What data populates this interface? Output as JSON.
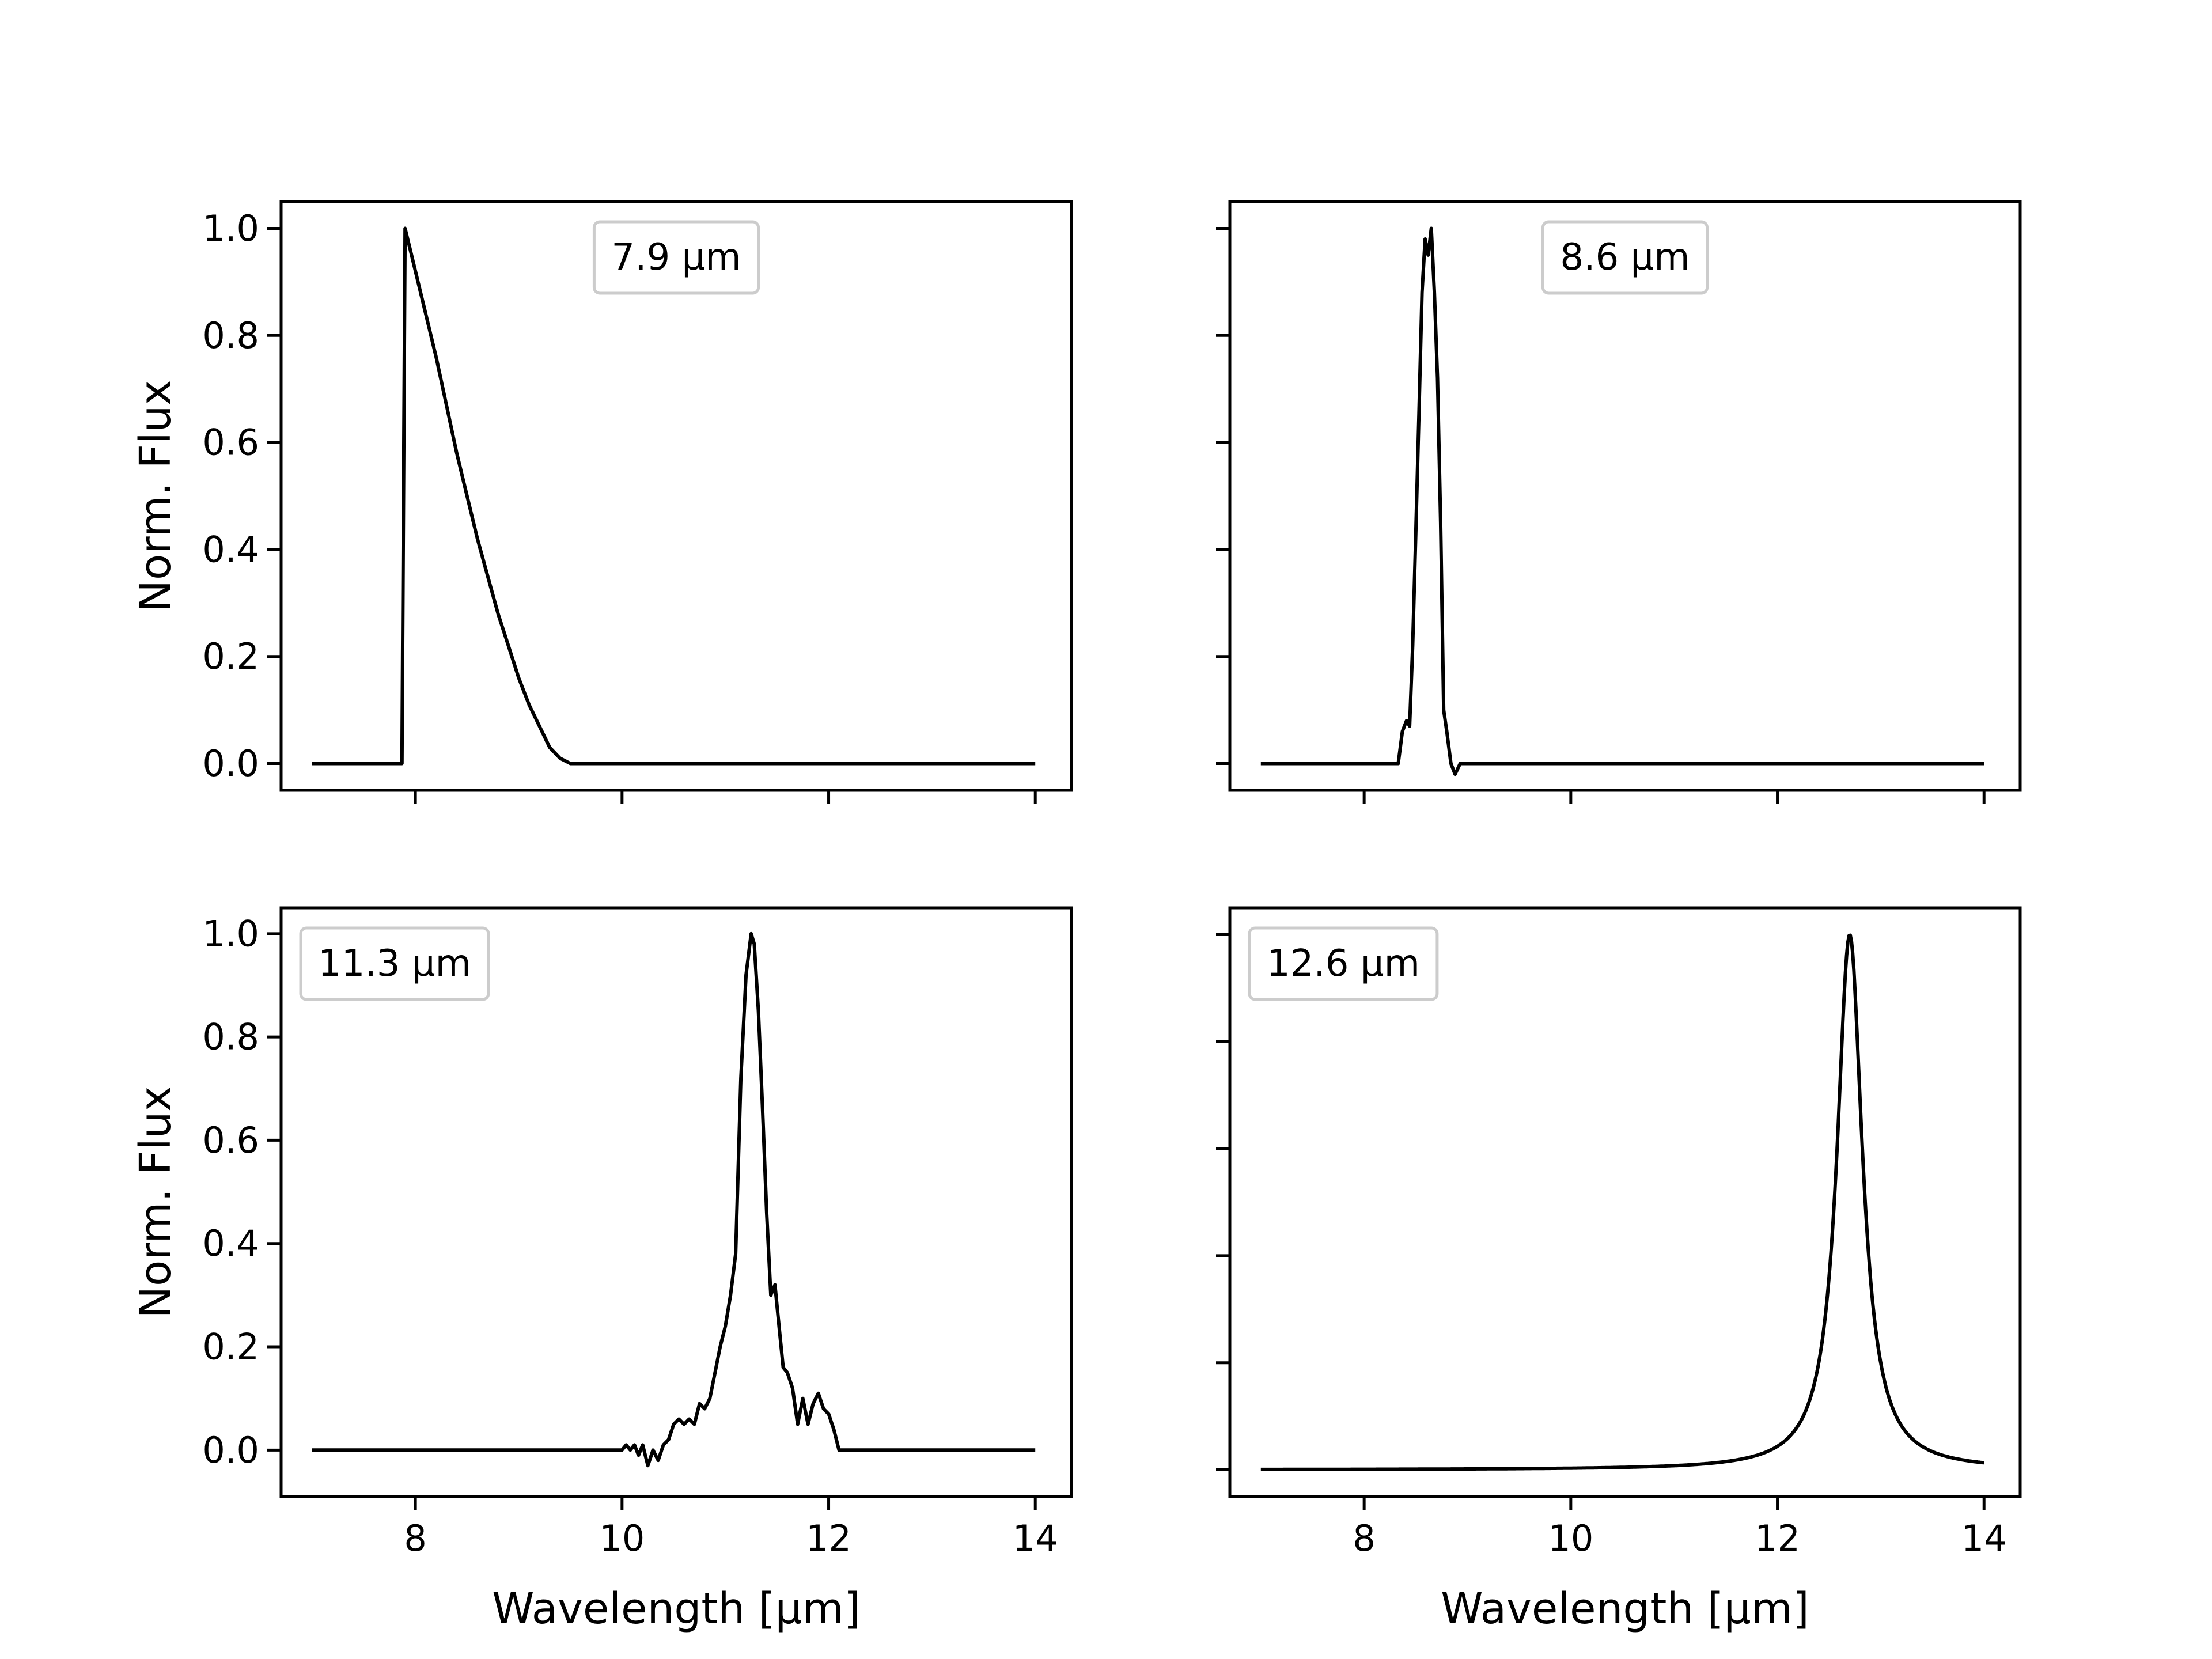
{
  "chart_data": [
    {
      "type": "line",
      "legend": "7.9 μm",
      "legend_placement": "top-center",
      "xlim": [
        6.7,
        14.35
      ],
      "ylim": [
        -0.05,
        1.05
      ],
      "xticks": [
        8,
        10,
        12,
        14
      ],
      "yticks": [
        0.0,
        0.2,
        0.4,
        0.6,
        0.8,
        1.0
      ],
      "ytick_labels": [
        "0.0",
        "0.2",
        "0.4",
        "0.6",
        "0.8",
        "1.0"
      ],
      "xtick_labels": [],
      "xlabel": "",
      "ylabel": "Norm. Flux",
      "grid": false,
      "series": [
        {
          "x": [
            7.0,
            7.87,
            7.9,
            7.95,
            8.0,
            8.1,
            8.2,
            8.3,
            8.4,
            8.5,
            8.6,
            8.7,
            8.8,
            8.9,
            9.0,
            9.1,
            9.2,
            9.3,
            9.4,
            9.5,
            10.0,
            11.0,
            12.0,
            13.0,
            14.0
          ],
          "y": [
            0.0,
            0.0,
            1.0,
            0.96,
            0.92,
            0.84,
            0.76,
            0.67,
            0.58,
            0.5,
            0.42,
            0.35,
            0.28,
            0.22,
            0.16,
            0.11,
            0.07,
            0.03,
            0.01,
            0.0,
            0.0,
            0.0,
            0.0,
            0.0,
            0.0
          ]
        }
      ]
    },
    {
      "type": "line",
      "legend": "8.6 μm",
      "legend_placement": "top-center",
      "xlim": [
        6.7,
        14.35
      ],
      "ylim": [
        -0.05,
        1.05
      ],
      "xticks": [
        8,
        10,
        12,
        14
      ],
      "yticks": [
        0.0,
        0.2,
        0.4,
        0.6,
        0.8,
        1.0
      ],
      "ytick_labels": [],
      "xtick_labels": [],
      "xlabel": "",
      "ylabel": "",
      "grid": false,
      "series": [
        {
          "x": [
            7.0,
            8.33,
            8.37,
            8.41,
            8.44,
            8.47,
            8.5,
            8.53,
            8.56,
            8.59,
            8.62,
            8.65,
            8.68,
            8.71,
            8.74,
            8.77,
            8.8,
            8.84,
            8.88,
            8.93,
            8.97,
            9.0,
            14.0
          ],
          "y": [
            0.0,
            0.0,
            0.06,
            0.08,
            0.07,
            0.22,
            0.43,
            0.65,
            0.88,
            0.98,
            0.95,
            1.0,
            0.88,
            0.72,
            0.45,
            0.1,
            0.06,
            0.0,
            -0.02,
            0.0,
            0.0,
            0.0,
            0.0
          ]
        }
      ]
    },
    {
      "type": "line",
      "legend": "11.3 μm",
      "legend_placement": "top-left",
      "xlim": [
        6.7,
        14.35
      ],
      "ylim": [
        -0.09,
        1.05
      ],
      "xticks": [
        8,
        10,
        12,
        14
      ],
      "yticks": [
        0.0,
        0.2,
        0.4,
        0.6,
        0.8,
        1.0
      ],
      "ytick_labels": [
        "0.0",
        "0.2",
        "0.4",
        "0.6",
        "0.8",
        "1.0"
      ],
      "xtick_labels": [
        "8",
        "10",
        "12",
        "14"
      ],
      "xlabel": "Wavelength [μm]",
      "ylabel": "Norm. Flux",
      "grid": false,
      "series": [
        {
          "x": [
            7.0,
            10.0,
            10.04,
            10.08,
            10.12,
            10.16,
            10.2,
            10.25,
            10.3,
            10.35,
            10.4,
            10.45,
            10.5,
            10.55,
            10.6,
            10.65,
            10.7,
            10.75,
            10.8,
            10.85,
            10.9,
            10.95,
            11.0,
            11.05,
            11.1,
            11.15,
            11.2,
            11.25,
            11.28,
            11.32,
            11.36,
            11.4,
            11.44,
            11.48,
            11.52,
            11.56,
            11.6,
            11.65,
            11.7,
            11.75,
            11.8,
            11.85,
            11.9,
            11.95,
            12.0,
            12.05,
            12.1,
            12.12,
            14.0
          ],
          "y": [
            0.0,
            0.0,
            0.01,
            0.0,
            0.01,
            -0.01,
            0.01,
            -0.03,
            0.0,
            -0.02,
            0.01,
            0.02,
            0.05,
            0.06,
            0.05,
            0.06,
            0.05,
            0.09,
            0.08,
            0.1,
            0.15,
            0.2,
            0.24,
            0.3,
            0.38,
            0.72,
            0.92,
            1.0,
            0.98,
            0.85,
            0.66,
            0.46,
            0.3,
            0.32,
            0.24,
            0.16,
            0.15,
            0.12,
            0.05,
            0.1,
            0.05,
            0.09,
            0.11,
            0.08,
            0.07,
            0.04,
            0.0,
            0.0,
            0.0
          ]
        }
      ]
    },
    {
      "type": "line",
      "legend": "12.6 μm",
      "legend_placement": "top-left",
      "xlim": [
        6.7,
        14.35
      ],
      "ylim": [
        -0.05,
        1.05
      ],
      "xticks": [
        8,
        10,
        12,
        14
      ],
      "yticks": [
        0.0,
        0.2,
        0.4,
        0.6,
        0.8,
        1.0
      ],
      "ytick_labels": [],
      "xtick_labels": [
        "8",
        "10",
        "12",
        "14"
      ],
      "xlabel": "Wavelength [μm]",
      "ylabel": "",
      "grid": false,
      "profile": {
        "shape": "lorentzian",
        "x_min": 7.0,
        "x_max": 14.0,
        "center": 12.7,
        "hwhm": 0.15,
        "peak": 1.0
      }
    }
  ]
}
